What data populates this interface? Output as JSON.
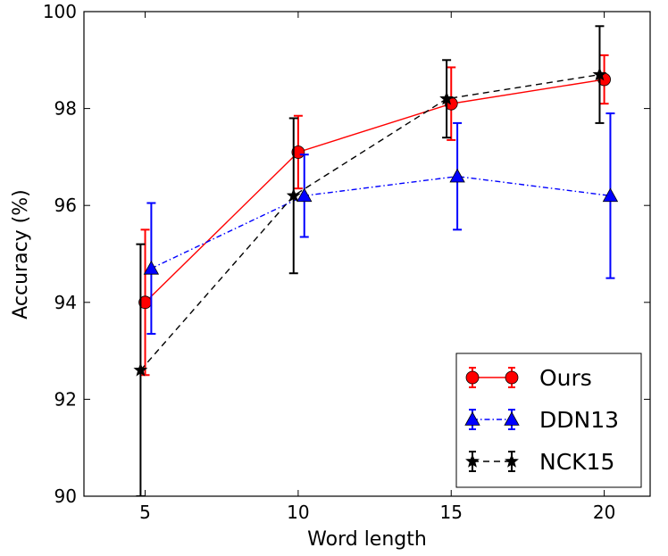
{
  "chart_data": {
    "type": "line",
    "title": "",
    "xlabel": "Word length",
    "ylabel": "Accuracy (%)",
    "xlim": [
      3,
      21.5
    ],
    "ylim": [
      90,
      100
    ],
    "xticks": [
      5,
      10,
      15,
      20
    ],
    "yticks": [
      90,
      92,
      94,
      96,
      98,
      100
    ],
    "legend_position": "lower-right",
    "grid": false,
    "series": [
      {
        "name": "Ours",
        "color": "#ff0000",
        "marker": "circle",
        "line_style": "solid",
        "x": [
          5.0,
          10.0,
          15.0,
          20.0
        ],
        "y": [
          94.0,
          97.1,
          98.1,
          98.6
        ],
        "err_low": [
          92.5,
          96.35,
          97.35,
          98.1
        ],
        "err_high": [
          95.5,
          97.85,
          98.85,
          99.1
        ]
      },
      {
        "name": "DDN13",
        "color": "#0000ff",
        "marker": "triangle",
        "line_style": "dashdot",
        "x": [
          5.0,
          10.0,
          15.0,
          20.0
        ],
        "y": [
          94.7,
          96.2,
          96.6,
          96.2
        ],
        "err_low": [
          93.35,
          95.35,
          95.5,
          94.5
        ],
        "err_high": [
          96.05,
          97.05,
          97.7,
          97.9
        ]
      },
      {
        "name": "NCK15",
        "color": "#000000",
        "marker": "star",
        "line_style": "dashed",
        "x": [
          5.0,
          10.0,
          15.0,
          20.0
        ],
        "y": [
          92.6,
          96.2,
          98.2,
          98.7
        ],
        "err_low": [
          90.0,
          94.6,
          97.4,
          97.7
        ],
        "err_high": [
          95.2,
          97.8,
          99.0,
          99.7
        ]
      }
    ]
  }
}
